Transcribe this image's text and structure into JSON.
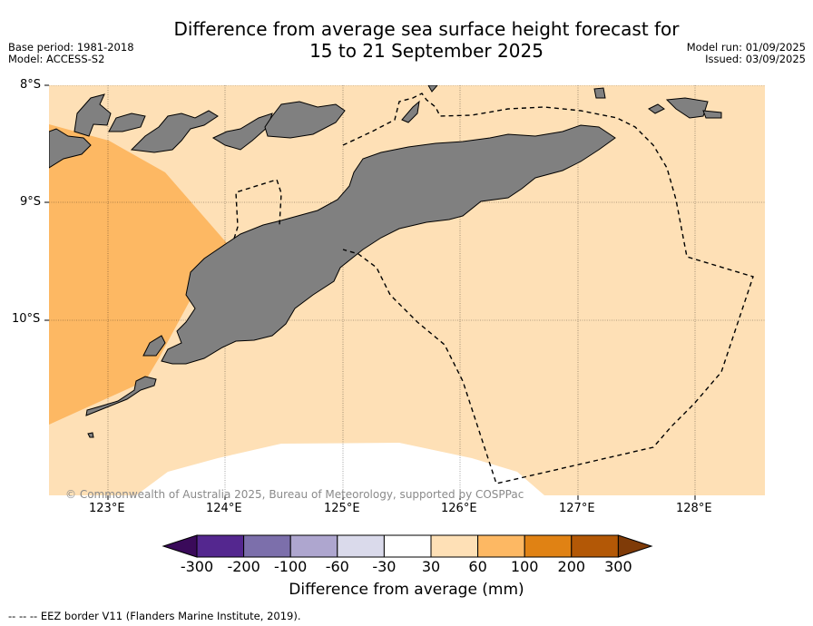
{
  "title_line1": "Difference from average sea surface height forecast for",
  "title_line2": "15 to 21 September 2025",
  "meta_left": {
    "base_period": "Base period: 1981-2018",
    "model": "Model: ACCESS-S2"
  },
  "meta_right": {
    "model_run": "Model run: 01/09/2025",
    "issued": "Issued: 03/09/2025"
  },
  "copyright": "© Commonwealth of Australia 2025, Bureau of Meteorology, supported by COSPPac",
  "lat_labels": [
    "8°S",
    "9°S",
    "10°S"
  ],
  "lon_labels": [
    "123°E",
    "124°E",
    "125°E",
    "126°E",
    "127°E",
    "128°E"
  ],
  "colorbar": {
    "ticks": [
      "-300",
      "-200",
      "-100",
      "-60",
      "-30",
      "30",
      "60",
      "100",
      "200",
      "300"
    ],
    "colors": {
      "below_-300": "#3a0a5a",
      "-300_-200": "#54278f",
      "-200_-100": "#7c6fab",
      "-100_-60": "#aea6cf",
      "-60_-30": "#dadaeb",
      "-30_30": "#ffffff",
      "30_60": "#fee0b6",
      "60_100": "#fdb863",
      "100_200": "#e08214",
      "200_300": "#b35806",
      "above_300": "#7f3b08"
    },
    "title": "Difference from average (mm)"
  },
  "legend_footer": "-- -- -- EEZ border V11 (Flanders Marine Institute, 2019).",
  "map_colors": {
    "land": "#808080",
    "light_orange": "#fee0b6",
    "orange": "#fdb863",
    "white": "#ffffff"
  }
}
